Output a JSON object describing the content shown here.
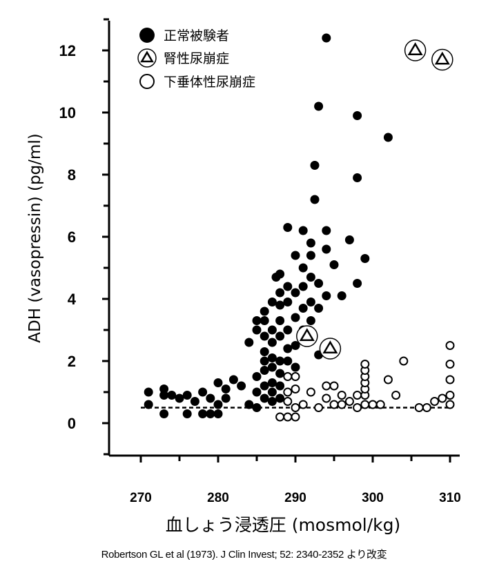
{
  "chart_data": {
    "type": "scatter",
    "title": "",
    "xlabel": "血しょう浸透圧 (mosmol/kg)",
    "ylabel": "ADH (vasopressin) (pg/ml)",
    "xlim": [
      266,
      311
    ],
    "ylim": [
      -1,
      13
    ],
    "x_ticks": [
      "270",
      "280",
      "290",
      "300",
      "310"
    ],
    "y_ticks": [
      "0",
      "2",
      "4",
      "6",
      "8",
      "10",
      "12"
    ],
    "legend_position": "top-left",
    "reference_line": {
      "y": 0.5,
      "x_range": [
        270,
        310
      ],
      "style": "dashed"
    },
    "series": [
      {
        "name": "正常被験者",
        "marker": "filled-circle",
        "color": "#000000",
        "points": [
          [
            271,
            1.0
          ],
          [
            271,
            0.6
          ],
          [
            273,
            1.1
          ],
          [
            273,
            0.9
          ],
          [
            273,
            0.3
          ],
          [
            274,
            0.9
          ],
          [
            275,
            0.8
          ],
          [
            276,
            0.9
          ],
          [
            276,
            0.3
          ],
          [
            277,
            0.7
          ],
          [
            278,
            1.0
          ],
          [
            278,
            0.3
          ],
          [
            279,
            0.8
          ],
          [
            279,
            0.3
          ],
          [
            280,
            1.3
          ],
          [
            280,
            0.3
          ],
          [
            280,
            0.6
          ],
          [
            281,
            1.1
          ],
          [
            281,
            0.8
          ],
          [
            282,
            1.4
          ],
          [
            283,
            1.2
          ],
          [
            284,
            0.6
          ],
          [
            284,
            2.6
          ],
          [
            285,
            3.3
          ],
          [
            285,
            3.0
          ],
          [
            285,
            1.5
          ],
          [
            285,
            1.0
          ],
          [
            285,
            0.5
          ],
          [
            286,
            3.6
          ],
          [
            286,
            3.3
          ],
          [
            286,
            2.8
          ],
          [
            286,
            2.3
          ],
          [
            286,
            2.0
          ],
          [
            286,
            1.7
          ],
          [
            286,
            1.2
          ],
          [
            286,
            0.8
          ],
          [
            287,
            3.9
          ],
          [
            287,
            3.0
          ],
          [
            287,
            2.6
          ],
          [
            287,
            2.1
          ],
          [
            287,
            1.8
          ],
          [
            287,
            1.3
          ],
          [
            287,
            1.0
          ],
          [
            287,
            0.7
          ],
          [
            287.5,
            4.7
          ],
          [
            288,
            4.8
          ],
          [
            288,
            4.2
          ],
          [
            288,
            3.8
          ],
          [
            288,
            3.3
          ],
          [
            288,
            2.8
          ],
          [
            288,
            2.0
          ],
          [
            288,
            1.6
          ],
          [
            288,
            1.2
          ],
          [
            288,
            0.8
          ],
          [
            289,
            6.3
          ],
          [
            289,
            4.4
          ],
          [
            289,
            3.9
          ],
          [
            289,
            3.0
          ],
          [
            289,
            2.4
          ],
          [
            289,
            2.0
          ],
          [
            290,
            5.4
          ],
          [
            290,
            4.2
          ],
          [
            290,
            3.4
          ],
          [
            290,
            2.5
          ],
          [
            290,
            1.8
          ],
          [
            291,
            6.2
          ],
          [
            291,
            5.0
          ],
          [
            291,
            4.4
          ],
          [
            291,
            3.7
          ],
          [
            291,
            3.0
          ],
          [
            292,
            5.8
          ],
          [
            292,
            5.4
          ],
          [
            292,
            4.7
          ],
          [
            292,
            3.9
          ],
          [
            292,
            3.3
          ],
          [
            292,
            2.8
          ],
          [
            292.5,
            8.3
          ],
          [
            292.5,
            7.2
          ],
          [
            293,
            10.2
          ],
          [
            293,
            4.5
          ],
          [
            293,
            3.7
          ],
          [
            293,
            2.2
          ],
          [
            294,
            12.4
          ],
          [
            294,
            6.2
          ],
          [
            294,
            5.6
          ],
          [
            294,
            4.1
          ],
          [
            295,
            5.1
          ],
          [
            296,
            4.1
          ],
          [
            297,
            5.9
          ],
          [
            298,
            9.9
          ],
          [
            298,
            7.9
          ],
          [
            298,
            4.5
          ],
          [
            299,
            5.3
          ],
          [
            302,
            9.2
          ]
        ]
      },
      {
        "name": "腎性尿崩症",
        "marker": "triangle-in-circle",
        "color": "#000000",
        "points": [
          [
            291.5,
            2.8
          ],
          [
            294.5,
            2.4
          ],
          [
            305.5,
            12.0
          ],
          [
            309,
            11.7
          ]
        ]
      },
      {
        "name": "下垂体性尿崩症",
        "marker": "open-circle",
        "color": "#000000",
        "points": [
          [
            288,
            0.2
          ],
          [
            289,
            0.2
          ],
          [
            289,
            0.7
          ],
          [
            289,
            1.0
          ],
          [
            289,
            1.5
          ],
          [
            290,
            0.2
          ],
          [
            290,
            0.5
          ],
          [
            290,
            1.1
          ],
          [
            290,
            1.5
          ],
          [
            291,
            0.6
          ],
          [
            292,
            1.0
          ],
          [
            293,
            0.5
          ],
          [
            294,
            0.8
          ],
          [
            294,
            1.2
          ],
          [
            295,
            0.6
          ],
          [
            295,
            1.2
          ],
          [
            296,
            0.6
          ],
          [
            296,
            0.9
          ],
          [
            297,
            0.7
          ],
          [
            298,
            0.5
          ],
          [
            298,
            0.9
          ],
          [
            299,
            0.6
          ],
          [
            299,
            0.9
          ],
          [
            299,
            1.1
          ],
          [
            299,
            1.3
          ],
          [
            299,
            1.5
          ],
          [
            299,
            1.7
          ],
          [
            299,
            1.9
          ],
          [
            300,
            0.6
          ],
          [
            301,
            0.6
          ],
          [
            302,
            1.4
          ],
          [
            303,
            0.9
          ],
          [
            304,
            2.0
          ],
          [
            306,
            0.5
          ],
          [
            307,
            0.5
          ],
          [
            308,
            0.7
          ],
          [
            309,
            0.8
          ],
          [
            310,
            0.6
          ],
          [
            310,
            0.9
          ],
          [
            310,
            1.4
          ],
          [
            310,
            1.9
          ],
          [
            310,
            2.5
          ]
        ]
      }
    ]
  },
  "source_note": "Robertson GL et al (1973).  J Clin Invest; 52: 2340-2352 より改変"
}
